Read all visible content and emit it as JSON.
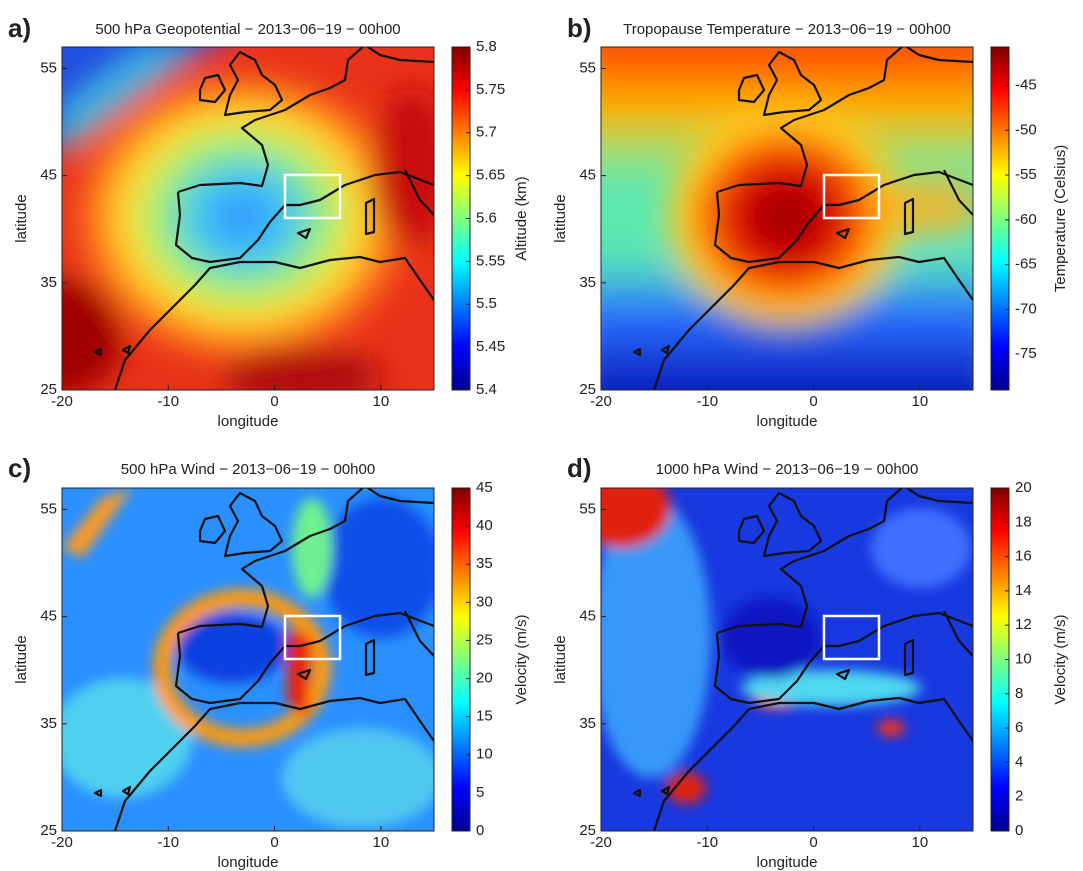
{
  "panels": [
    {
      "label": "a)",
      "title": "500 hPa Geopotential − 2013−06−19 − 00h00",
      "xlabel": "longitude",
      "ylabel": "latitude",
      "xlim": [
        -20,
        15
      ],
      "ylim": [
        25,
        57
      ],
      "xticks": [
        -20,
        -10,
        0,
        10
      ],
      "yticks": [
        25,
        35,
        45,
        55
      ],
      "colorbar": {
        "label": "Altitude (km)",
        "lim": [
          5.4,
          5.8
        ],
        "ticks": [
          5.4,
          5.45,
          5.5,
          5.55,
          5.6,
          5.65,
          5.7,
          5.75,
          5.8
        ]
      }
    },
    {
      "label": "b)",
      "title": "Tropopause Temperature − 2013−06−19 − 00h00",
      "xlabel": "longitude",
      "ylabel": "latitude",
      "xlim": [
        -20,
        15
      ],
      "ylim": [
        25,
        57
      ],
      "xticks": [
        -20,
        -10,
        0,
        10
      ],
      "yticks": [
        25,
        35,
        45,
        55
      ],
      "colorbar": {
        "label": "Temperature (Celsius)",
        "lim": [
          -79,
          -40.7
        ],
        "ticks": [
          -75,
          -70,
          -65,
          -60,
          -55,
          -50,
          -45
        ]
      }
    },
    {
      "label": "c)",
      "title": "500 hPa Wind − 2013−06−19 − 00h00",
      "xlabel": "longitude",
      "ylabel": "latitude",
      "xlim": [
        -20,
        15
      ],
      "ylim": [
        25,
        57
      ],
      "xticks": [
        -20,
        -10,
        0,
        10
      ],
      "yticks": [
        25,
        35,
        45,
        55
      ],
      "colorbar": {
        "label": "Velocity (m/s)",
        "lim": [
          0,
          45
        ],
        "ticks": [
          0,
          5,
          10,
          15,
          20,
          25,
          30,
          35,
          40,
          45
        ]
      }
    },
    {
      "label": "d)",
      "title": "1000 hPa Wind − 2013−06−19 − 00h00",
      "xlabel": "longitude",
      "ylabel": "latitude",
      "xlim": [
        -20,
        15
      ],
      "ylim": [
        25,
        57
      ],
      "xticks": [
        -20,
        -10,
        0,
        10
      ],
      "yticks": [
        25,
        35,
        45,
        55
      ],
      "colorbar": {
        "label": "Velocity (m/s)",
        "lim": [
          0,
          20
        ],
        "ticks": [
          0,
          2,
          4,
          6,
          8,
          10,
          12,
          14,
          16,
          18,
          20
        ]
      }
    }
  ]
}
